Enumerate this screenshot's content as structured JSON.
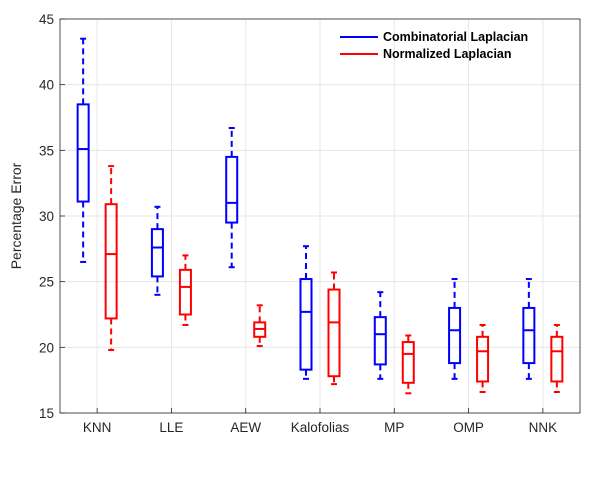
{
  "chart_data": {
    "type": "boxplot",
    "title": "",
    "xlabel": "",
    "ylabel": "Percentage Error",
    "ylim": [
      15,
      45
    ],
    "yticks": [
      15,
      20,
      25,
      30,
      35,
      40,
      45
    ],
    "grid": true,
    "legend_position": "top-right",
    "categories": [
      "KNN",
      "LLE",
      "AEW",
      "Kalofolias",
      "MP",
      "OMP",
      "NNK"
    ],
    "series": [
      {
        "name": "Combinatorial Laplacian",
        "color": "#0000ff",
        "boxes": [
          {
            "min": 26.5,
            "q1": 31.1,
            "median": 35.1,
            "q3": 38.5,
            "max": 43.5
          },
          {
            "min": 24.0,
            "q1": 25.4,
            "median": 27.6,
            "q3": 29.0,
            "max": 30.7
          },
          {
            "min": 26.1,
            "q1": 29.5,
            "median": 31.0,
            "q3": 34.5,
            "max": 36.7
          },
          {
            "min": 17.6,
            "q1": 18.3,
            "median": 22.7,
            "q3": 25.2,
            "max": 27.7
          },
          {
            "min": 17.6,
            "q1": 18.7,
            "median": 21.0,
            "q3": 22.3,
            "max": 24.2
          },
          {
            "min": 17.6,
            "q1": 18.8,
            "median": 21.3,
            "q3": 23.0,
            "max": 25.2
          },
          {
            "min": 17.6,
            "q1": 18.8,
            "median": 21.3,
            "q3": 23.0,
            "max": 25.2
          }
        ]
      },
      {
        "name": "Normalized Laplacian",
        "color": "#ff0000",
        "boxes": [
          {
            "min": 19.8,
            "q1": 22.2,
            "median": 27.1,
            "q3": 30.9,
            "max": 33.8
          },
          {
            "min": 21.7,
            "q1": 22.5,
            "median": 24.6,
            "q3": 25.9,
            "max": 27.0
          },
          {
            "min": 20.1,
            "q1": 20.8,
            "median": 21.4,
            "q3": 21.9,
            "max": 23.2
          },
          {
            "min": 17.2,
            "q1": 17.8,
            "median": 21.9,
            "q3": 24.4,
            "max": 25.7
          },
          {
            "min": 16.5,
            "q1": 17.3,
            "median": 19.5,
            "q3": 20.4,
            "max": 20.9
          },
          {
            "min": 16.6,
            "q1": 17.4,
            "median": 19.7,
            "q3": 20.8,
            "max": 21.7
          },
          {
            "min": 16.6,
            "q1": 17.4,
            "median": 19.7,
            "q3": 20.8,
            "max": 21.7
          }
        ]
      }
    ]
  }
}
